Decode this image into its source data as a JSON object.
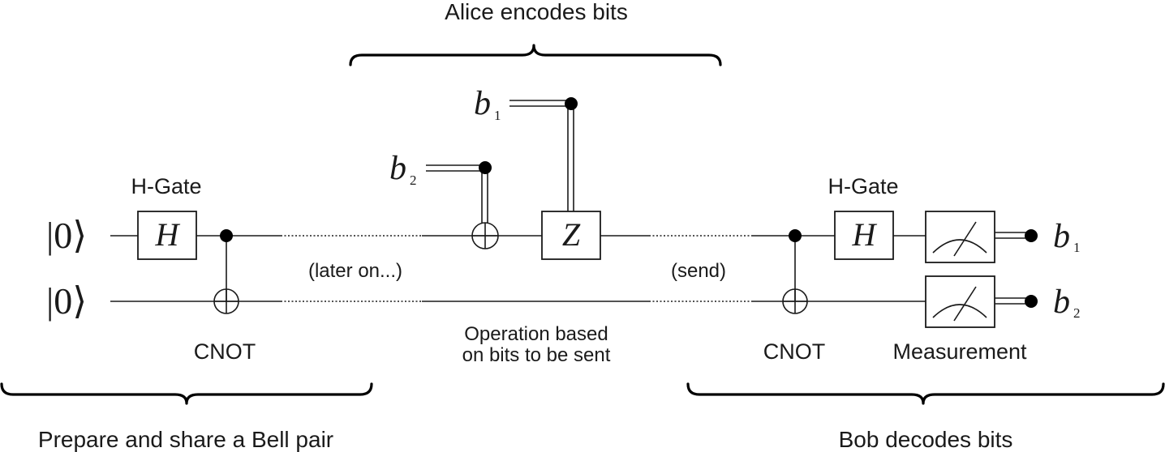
{
  "labels": {
    "alice_title": "Alice encodes bits",
    "prepare_title": "Prepare and share a Bell pair",
    "bob_title": "Bob decodes bits",
    "h_gate_left": "H-Gate",
    "h_gate_right": "H-Gate",
    "cnot_left": "CNOT",
    "cnot_right": "CNOT",
    "later_on": "(later on...)",
    "send": "(send)",
    "operation_line1": "Operation based",
    "operation_line2": "on bits to be sent",
    "measurement": "Measurement"
  },
  "states": {
    "qubit1": "|0⟩",
    "qubit2": "|0⟩"
  },
  "gates": {
    "h_left": "H",
    "z": "Z",
    "h_right": "H"
  },
  "bits": {
    "b1_in": {
      "base": "b",
      "sub": "1"
    },
    "b2_in": {
      "base": "b",
      "sub": "2"
    },
    "b1_out": {
      "base": "b",
      "sub": "1"
    },
    "b2_out": {
      "base": "b",
      "sub": "2"
    }
  }
}
